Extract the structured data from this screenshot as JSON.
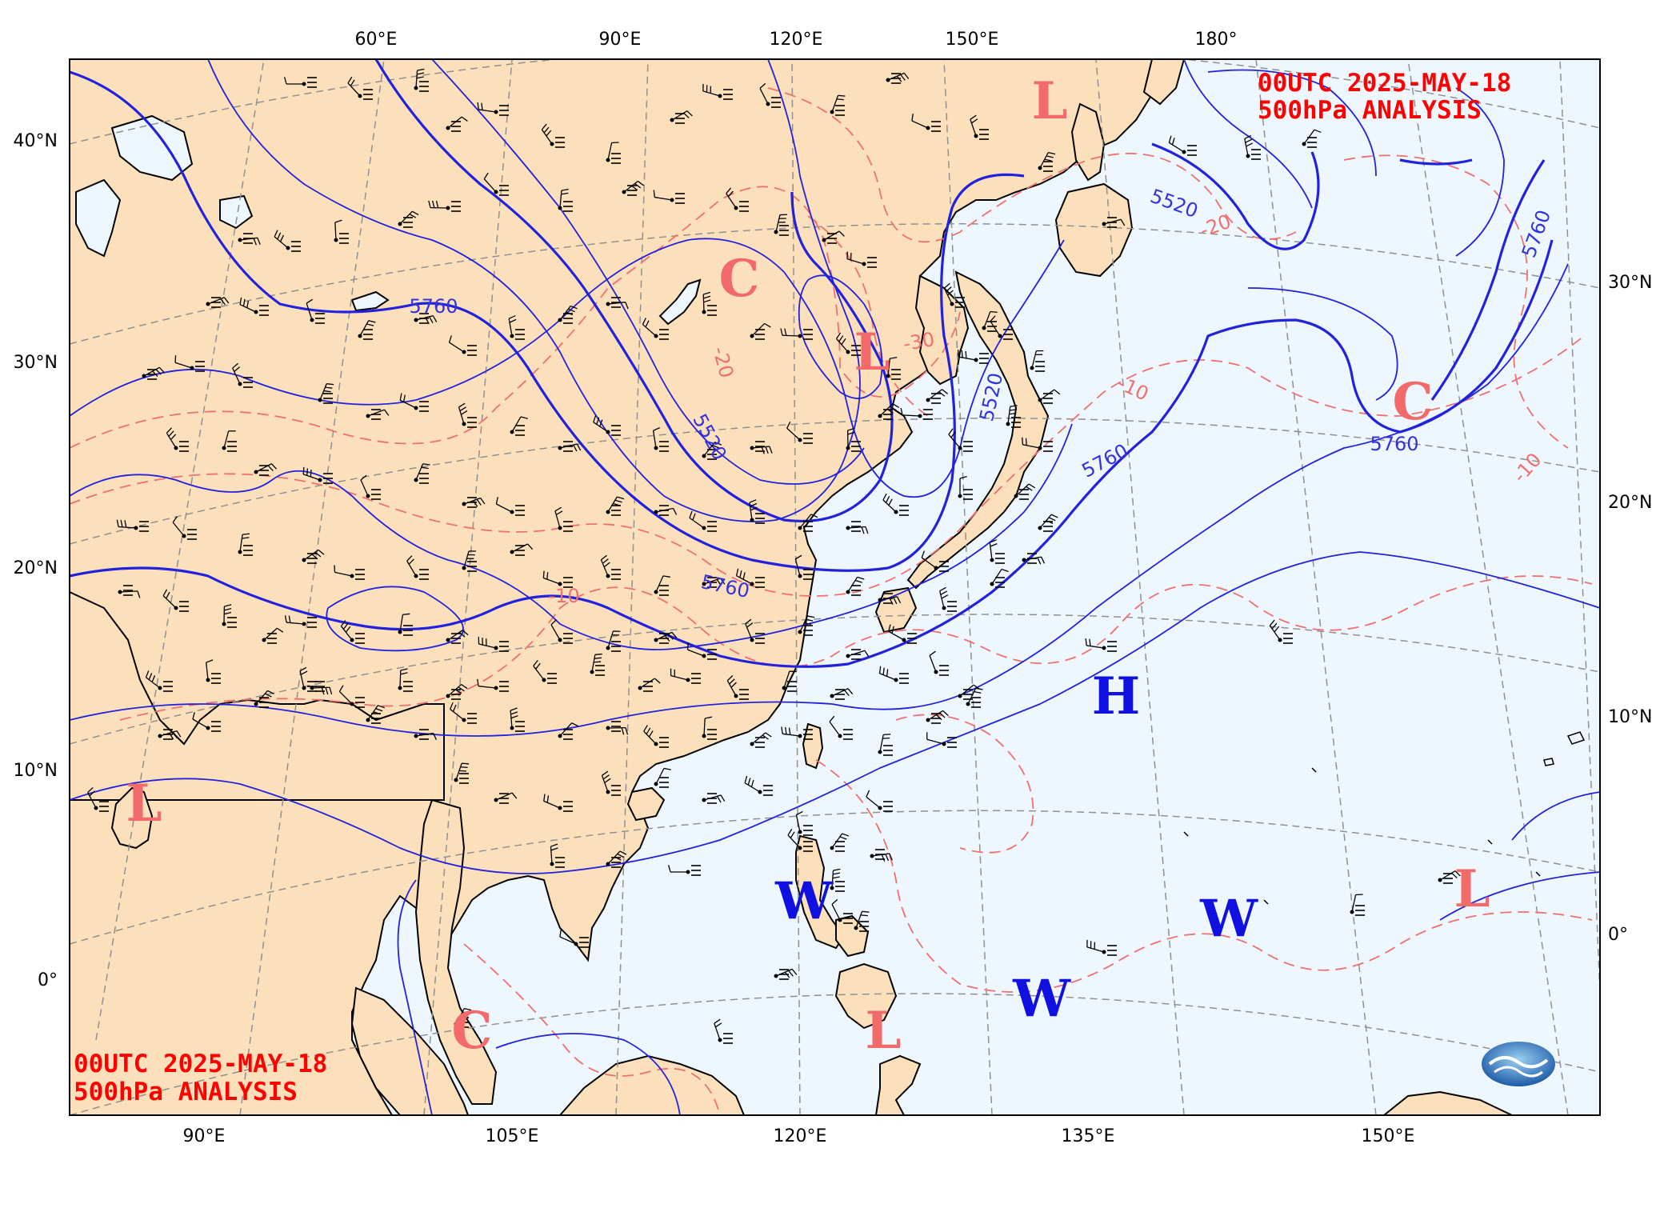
{
  "header": {
    "top_right_line1": "00UTC  2025-MAY-18",
    "top_right_line2": "500hPa ANALYSIS",
    "bottom_left_line1": "00UTC  2025-MAY-18",
    "bottom_left_line2": "500hPa ANALYSIS"
  },
  "axes": {
    "top_longitudes": [
      "60°E",
      "90°E",
      "120°E",
      "150°E",
      "180°"
    ],
    "bottom_longitudes": [
      "90°E",
      "105°E",
      "120°E",
      "135°E",
      "150°E"
    ],
    "left_latitudes": [
      "40°N",
      "30°N",
      "20°N",
      "10°N",
      "0°"
    ],
    "right_latitudes": [
      "30°N",
      "20°N",
      "10°N",
      "0°"
    ]
  },
  "systems": [
    {
      "letter": "L",
      "kind": "low"
    },
    {
      "letter": "C",
      "kind": "cold"
    },
    {
      "letter": "L",
      "kind": "low"
    },
    {
      "letter": "C",
      "kind": "cold"
    },
    {
      "letter": "H",
      "kind": "high"
    },
    {
      "letter": "L",
      "kind": "low"
    },
    {
      "letter": "W",
      "kind": "warm"
    },
    {
      "letter": "W",
      "kind": "warm"
    },
    {
      "letter": "W",
      "kind": "warm"
    },
    {
      "letter": "L",
      "kind": "low"
    },
    {
      "letter": "C",
      "kind": "cold"
    },
    {
      "letter": "L",
      "kind": "low"
    }
  ],
  "contour_labels": {
    "height": [
      "5760",
      "5520",
      "5520",
      "5760",
      "5760",
      "5760",
      "5760",
      "5520",
      "5520"
    ],
    "temperature": [
      "-20",
      "-30",
      "-20",
      "-10",
      "-10",
      "-20",
      "-10"
    ]
  },
  "colors": {
    "land": "#fce0bc",
    "ocean": "#eef7fd",
    "height_contour": "#2222dd",
    "temperature_contour": "#f07070",
    "system_red": "#f26a6a",
    "system_blue": "#1010e0",
    "header_text": "#ff0000"
  },
  "logo": "cwa-logo"
}
